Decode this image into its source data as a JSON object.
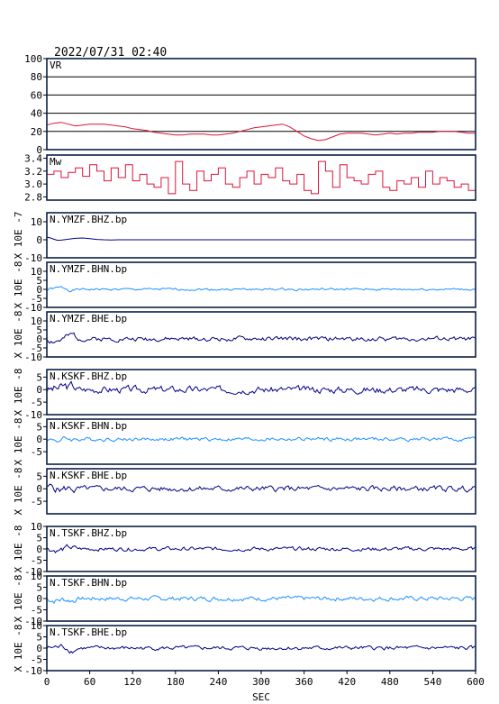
{
  "header": {
    "timestamp": "2022/07/31 02:40"
  },
  "colors": {
    "vr": "#dc143c",
    "mw": "#dc143c",
    "bhz": "#00008b",
    "bhn": "#1e90ff",
    "bhe": "#000080",
    "frame": "#0b1f44",
    "grid": "#000000"
  },
  "chart_data": [
    {
      "type": "line",
      "title": "VR",
      "ylim": [
        0,
        100
      ],
      "yticks": [
        0,
        20,
        40,
        60,
        80,
        100
      ],
      "grid": true,
      "x": [
        0,
        10,
        20,
        30,
        40,
        50,
        60,
        70,
        80,
        90,
        100,
        110,
        120,
        130,
        140,
        150,
        160,
        170,
        180,
        190,
        200,
        210,
        220,
        230,
        240,
        250,
        260,
        270,
        280,
        290,
        300,
        310,
        320,
        330,
        340,
        350,
        360,
        370,
        380,
        390,
        400,
        410,
        420,
        430,
        440,
        450,
        460,
        470,
        480,
        490,
        500,
        510,
        520,
        530,
        540,
        550,
        560,
        570,
        580,
        590,
        600
      ],
      "series": [
        {
          "values": [
            27,
            29,
            30,
            28,
            26,
            27,
            28,
            28,
            28,
            27,
            26,
            25,
            23,
            22,
            21,
            19,
            18,
            17,
            16,
            16,
            17,
            17,
            17,
            16,
            16,
            17,
            18,
            20,
            22,
            24,
            25,
            26,
            27,
            28,
            25,
            20,
            15,
            12,
            10,
            11,
            14,
            17,
            18,
            18,
            18,
            17,
            16,
            17,
            18,
            17,
            18,
            18,
            19,
            19,
            19,
            20,
            20,
            20,
            19,
            18,
            18
          ]
        }
      ]
    },
    {
      "type": "line",
      "title": "Mw",
      "ylim": [
        2.75,
        3.45
      ],
      "yticks": [
        2.8,
        3.0,
        3.2,
        3.4
      ],
      "ytick_labels": [
        "2.8",
        "3.0",
        "3.2",
        "3.4"
      ],
      "grid": false,
      "x": [
        0,
        10,
        20,
        30,
        40,
        50,
        60,
        70,
        80,
        90,
        100,
        110,
        120,
        130,
        140,
        150,
        160,
        170,
        180,
        190,
        200,
        210,
        220,
        230,
        240,
        250,
        260,
        270,
        280,
        290,
        300,
        310,
        320,
        330,
        340,
        350,
        360,
        370,
        380,
        390,
        400,
        410,
        420,
        430,
        440,
        450,
        460,
        470,
        480,
        490,
        500,
        510,
        520,
        530,
        540,
        550,
        560,
        570,
        580,
        590,
        600
      ],
      "series": [
        {
          "values": [
            3.15,
            3.2,
            3.1,
            3.18,
            3.25,
            3.12,
            3.3,
            3.2,
            3.05,
            3.25,
            3.1,
            3.3,
            3.05,
            3.15,
            3.0,
            2.95,
            3.1,
            2.85,
            3.35,
            3.0,
            2.9,
            3.2,
            3.05,
            3.15,
            3.25,
            3.0,
            2.95,
            3.1,
            3.2,
            3.0,
            3.15,
            3.1,
            3.25,
            3.05,
            3.0,
            3.15,
            2.9,
            2.85,
            3.35,
            3.2,
            2.95,
            3.3,
            3.1,
            3.05,
            3.0,
            3.15,
            3.2,
            2.95,
            2.9,
            3.05,
            3.0,
            3.1,
            2.95,
            3.2,
            3.0,
            3.1,
            3.05,
            2.95,
            3.0,
            2.9,
            3.0
          ]
        }
      ]
    },
    {
      "type": "line",
      "title": "N.YMZF.BHZ.bp",
      "ylabel": "X 10E -7",
      "ylim": [
        -10,
        15
      ],
      "yticks": [
        -10,
        0,
        10
      ],
      "grid": false,
      "color_key": "bhz",
      "x": [
        0,
        5,
        10,
        15,
        20,
        30,
        40,
        50,
        60,
        70,
        80,
        90,
        100,
        600
      ],
      "series": [
        {
          "values": [
            1.5,
            1.0,
            0.3,
            -0.3,
            -0.2,
            0.3,
            0.8,
            1.0,
            0.6,
            0.2,
            0,
            -0.1,
            0,
            0
          ]
        }
      ]
    },
    {
      "type": "line",
      "title": "N.YMZF.BHN.bp",
      "ylabel": "X 10E -8",
      "ylim": [
        -10,
        15
      ],
      "yticks": [
        -10,
        -5,
        0,
        5,
        10
      ],
      "grid": false,
      "color_key": "bhn",
      "amp": 0.5,
      "seed": 1
    },
    {
      "type": "line",
      "title": "N.YMZF.BHE.bp",
      "ylabel": "X 10E -8",
      "ylim": [
        -10,
        15
      ],
      "yticks": [
        -10,
        -5,
        0,
        5,
        10
      ],
      "grid": false,
      "color_key": "bhe",
      "amp": 1.0,
      "seed": 2
    },
    {
      "type": "line",
      "title": "N.KSKF.BHZ.bp",
      "ylabel": "X 10E -8",
      "ylim": [
        -10,
        8
      ],
      "yticks": [
        -10,
        -5,
        0,
        5
      ],
      "grid": false,
      "color_key": "bhz",
      "amp": 1.1,
      "seed": 3
    },
    {
      "type": "line",
      "title": "N.KSKF.BHN.bp",
      "ylabel": "X 10E -8",
      "ylim": [
        -10,
        8
      ],
      "yticks": [
        -5,
        0,
        5
      ],
      "grid": false,
      "color_key": "bhn",
      "amp": 0.6,
      "seed": 4
    },
    {
      "type": "line",
      "title": "N.KSKF.BHE.bp",
      "ylabel": "X 10E -8",
      "ylim": [
        -10,
        8
      ],
      "yticks": [
        -5,
        0,
        5
      ],
      "grid": false,
      "color_key": "bhe",
      "amp": 0.9,
      "seed": 5
    },
    {
      "type": "line",
      "title": "N.TSKF.BHZ.bp",
      "ylabel": "X 10E -8",
      "ylim": [
        -10,
        10
      ],
      "yticks": [
        -10,
        -5,
        0,
        5,
        10
      ],
      "grid": false,
      "color_key": "bhz",
      "amp": 0.7,
      "seed": 6
    },
    {
      "type": "line",
      "title": "N.TSKF.BHN.bp",
      "ylabel": "X 10E -8",
      "ylim": [
        -10,
        10
      ],
      "yticks": [
        -10,
        -5,
        0,
        5,
        10
      ],
      "grid": false,
      "color_key": "bhn",
      "amp": 0.8,
      "seed": 7
    },
    {
      "type": "line",
      "title": "N.TSKF.BHE.bp",
      "ylabel": "X 10E -8",
      "ylim": [
        -10,
        10
      ],
      "yticks": [
        -10,
        -5,
        0,
        5,
        10
      ],
      "grid": false,
      "color_key": "bhe",
      "amp": 0.7,
      "seed": 8
    }
  ],
  "x_axis": {
    "label": "SEC",
    "ticks": [
      0,
      60,
      120,
      180,
      240,
      300,
      360,
      420,
      480,
      540,
      600
    ],
    "range": [
      0,
      600
    ]
  }
}
